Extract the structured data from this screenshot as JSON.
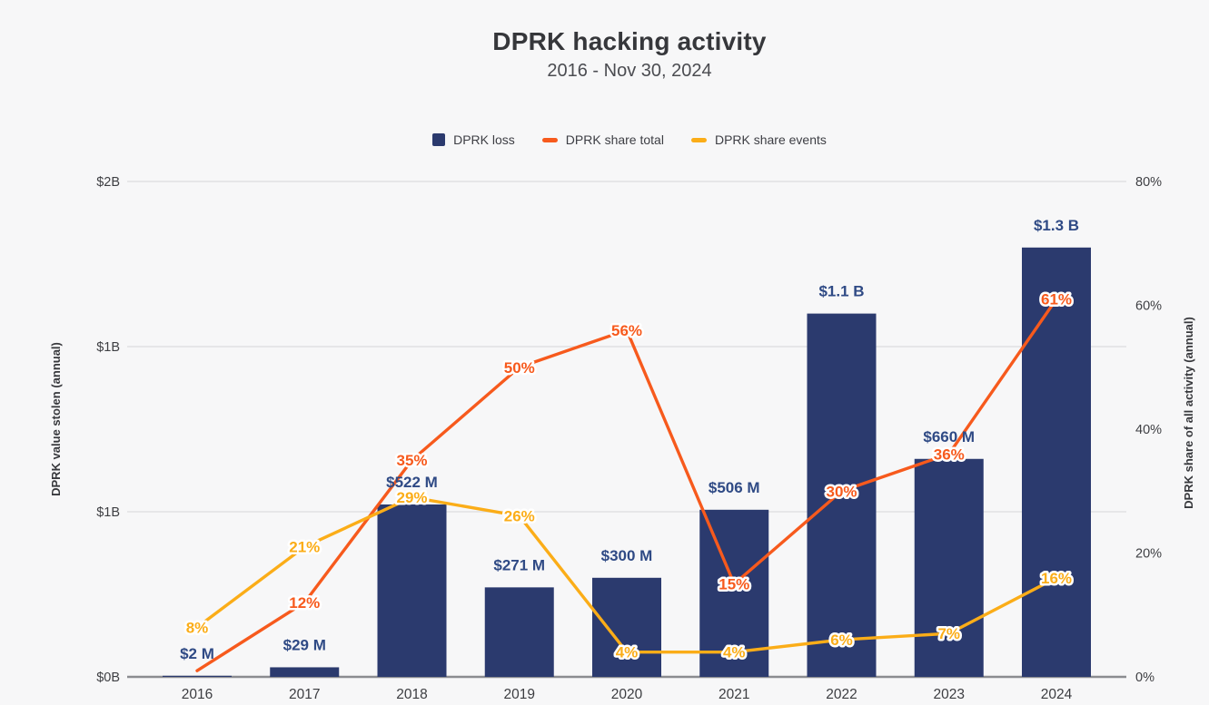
{
  "page": {
    "background": "#f7f7f8"
  },
  "header": {
    "title": "DPRK hacking activity",
    "subtitle": "2016 - Nov 30, 2024"
  },
  "legend": {
    "position": "top",
    "items": [
      {
        "label": "DPRK loss",
        "marker": "square",
        "color": "#2b3a6e"
      },
      {
        "label": "DPRK share total",
        "marker": "dash",
        "color": "#f75a1d"
      },
      {
        "label": "DPRK share events",
        "marker": "dash",
        "color": "#fbad18"
      }
    ]
  },
  "chart_data": {
    "type": "combo",
    "title": "DPRK hacking activity",
    "subtitle": "2016 - Nov 30, 2024",
    "grid": true,
    "categories": [
      "2016",
      "2017",
      "2018",
      "2019",
      "2020",
      "2021",
      "2022",
      "2023",
      "2024"
    ],
    "series": [
      {
        "name": "DPRK loss",
        "type": "bar",
        "axis": "left",
        "color": "#2b3a6e",
        "label_color": "#2f4a85",
        "values_million_usd": [
          2,
          29,
          522,
          271,
          300,
          506,
          1100,
          660,
          1300
        ],
        "labels": [
          "$2 M",
          "$29 M",
          "$522 M",
          "$271 M",
          "$300 M",
          "$506 M",
          "$1.1 B",
          "$660 M",
          "$1.3 B"
        ]
      },
      {
        "name": "DPRK share total",
        "type": "line",
        "axis": "right",
        "color": "#f75a1d",
        "values_percent": [
          1,
          12,
          35,
          50,
          56,
          15,
          30,
          36,
          61
        ],
        "labels": [
          null,
          "12%",
          "35%",
          "50%",
          "56%",
          "15%",
          "30%",
          "36%",
          "61%"
        ]
      },
      {
        "name": "DPRK share events",
        "type": "line",
        "axis": "right",
        "color": "#fbad18",
        "values_percent": [
          8,
          21,
          29,
          26,
          4,
          4,
          6,
          7,
          16
        ],
        "labels": [
          "8%",
          "21%",
          "29%",
          "26%",
          "4%",
          "4%",
          "6%",
          "7%",
          "16%"
        ]
      }
    ],
    "left_axis": {
      "title": "DPRK value stolen (annual)",
      "tick_labels": [
        "$2B",
        "$1B",
        "$1B",
        "$0B"
      ],
      "range_billion_usd": [
        0,
        1.5
      ]
    },
    "right_axis": {
      "title": "DPRK share of all activity (annual)",
      "tick_labels": [
        "80%",
        "60%",
        "40%",
        "20%",
        "0%"
      ],
      "range_percent": [
        0,
        80
      ]
    }
  }
}
